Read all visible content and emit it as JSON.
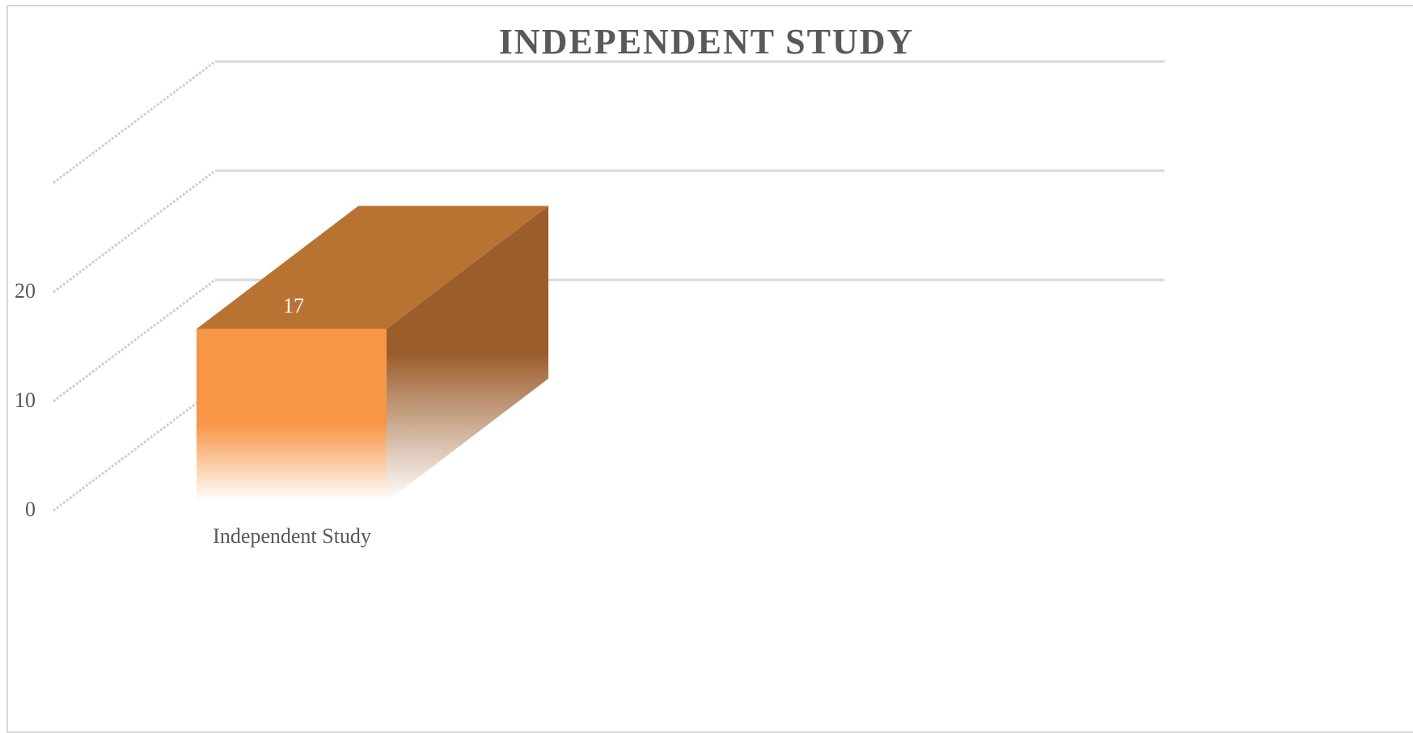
{
  "chart_data": {
    "type": "bar",
    "style": "3d-column",
    "title": "INDEPENDENT STUDY",
    "categories": [
      "Independent Study"
    ],
    "series": [
      {
        "values": [
          17
        ],
        "color": "#F79646"
      }
    ],
    "data_labels": [
      "17"
    ],
    "ylim": [
      0,
      30
    ],
    "yticks": [
      0,
      10,
      20
    ],
    "ytick_labels": [
      "0",
      "10",
      "20"
    ],
    "xlabel": "",
    "ylabel": "",
    "grid": true,
    "legend": "none"
  }
}
